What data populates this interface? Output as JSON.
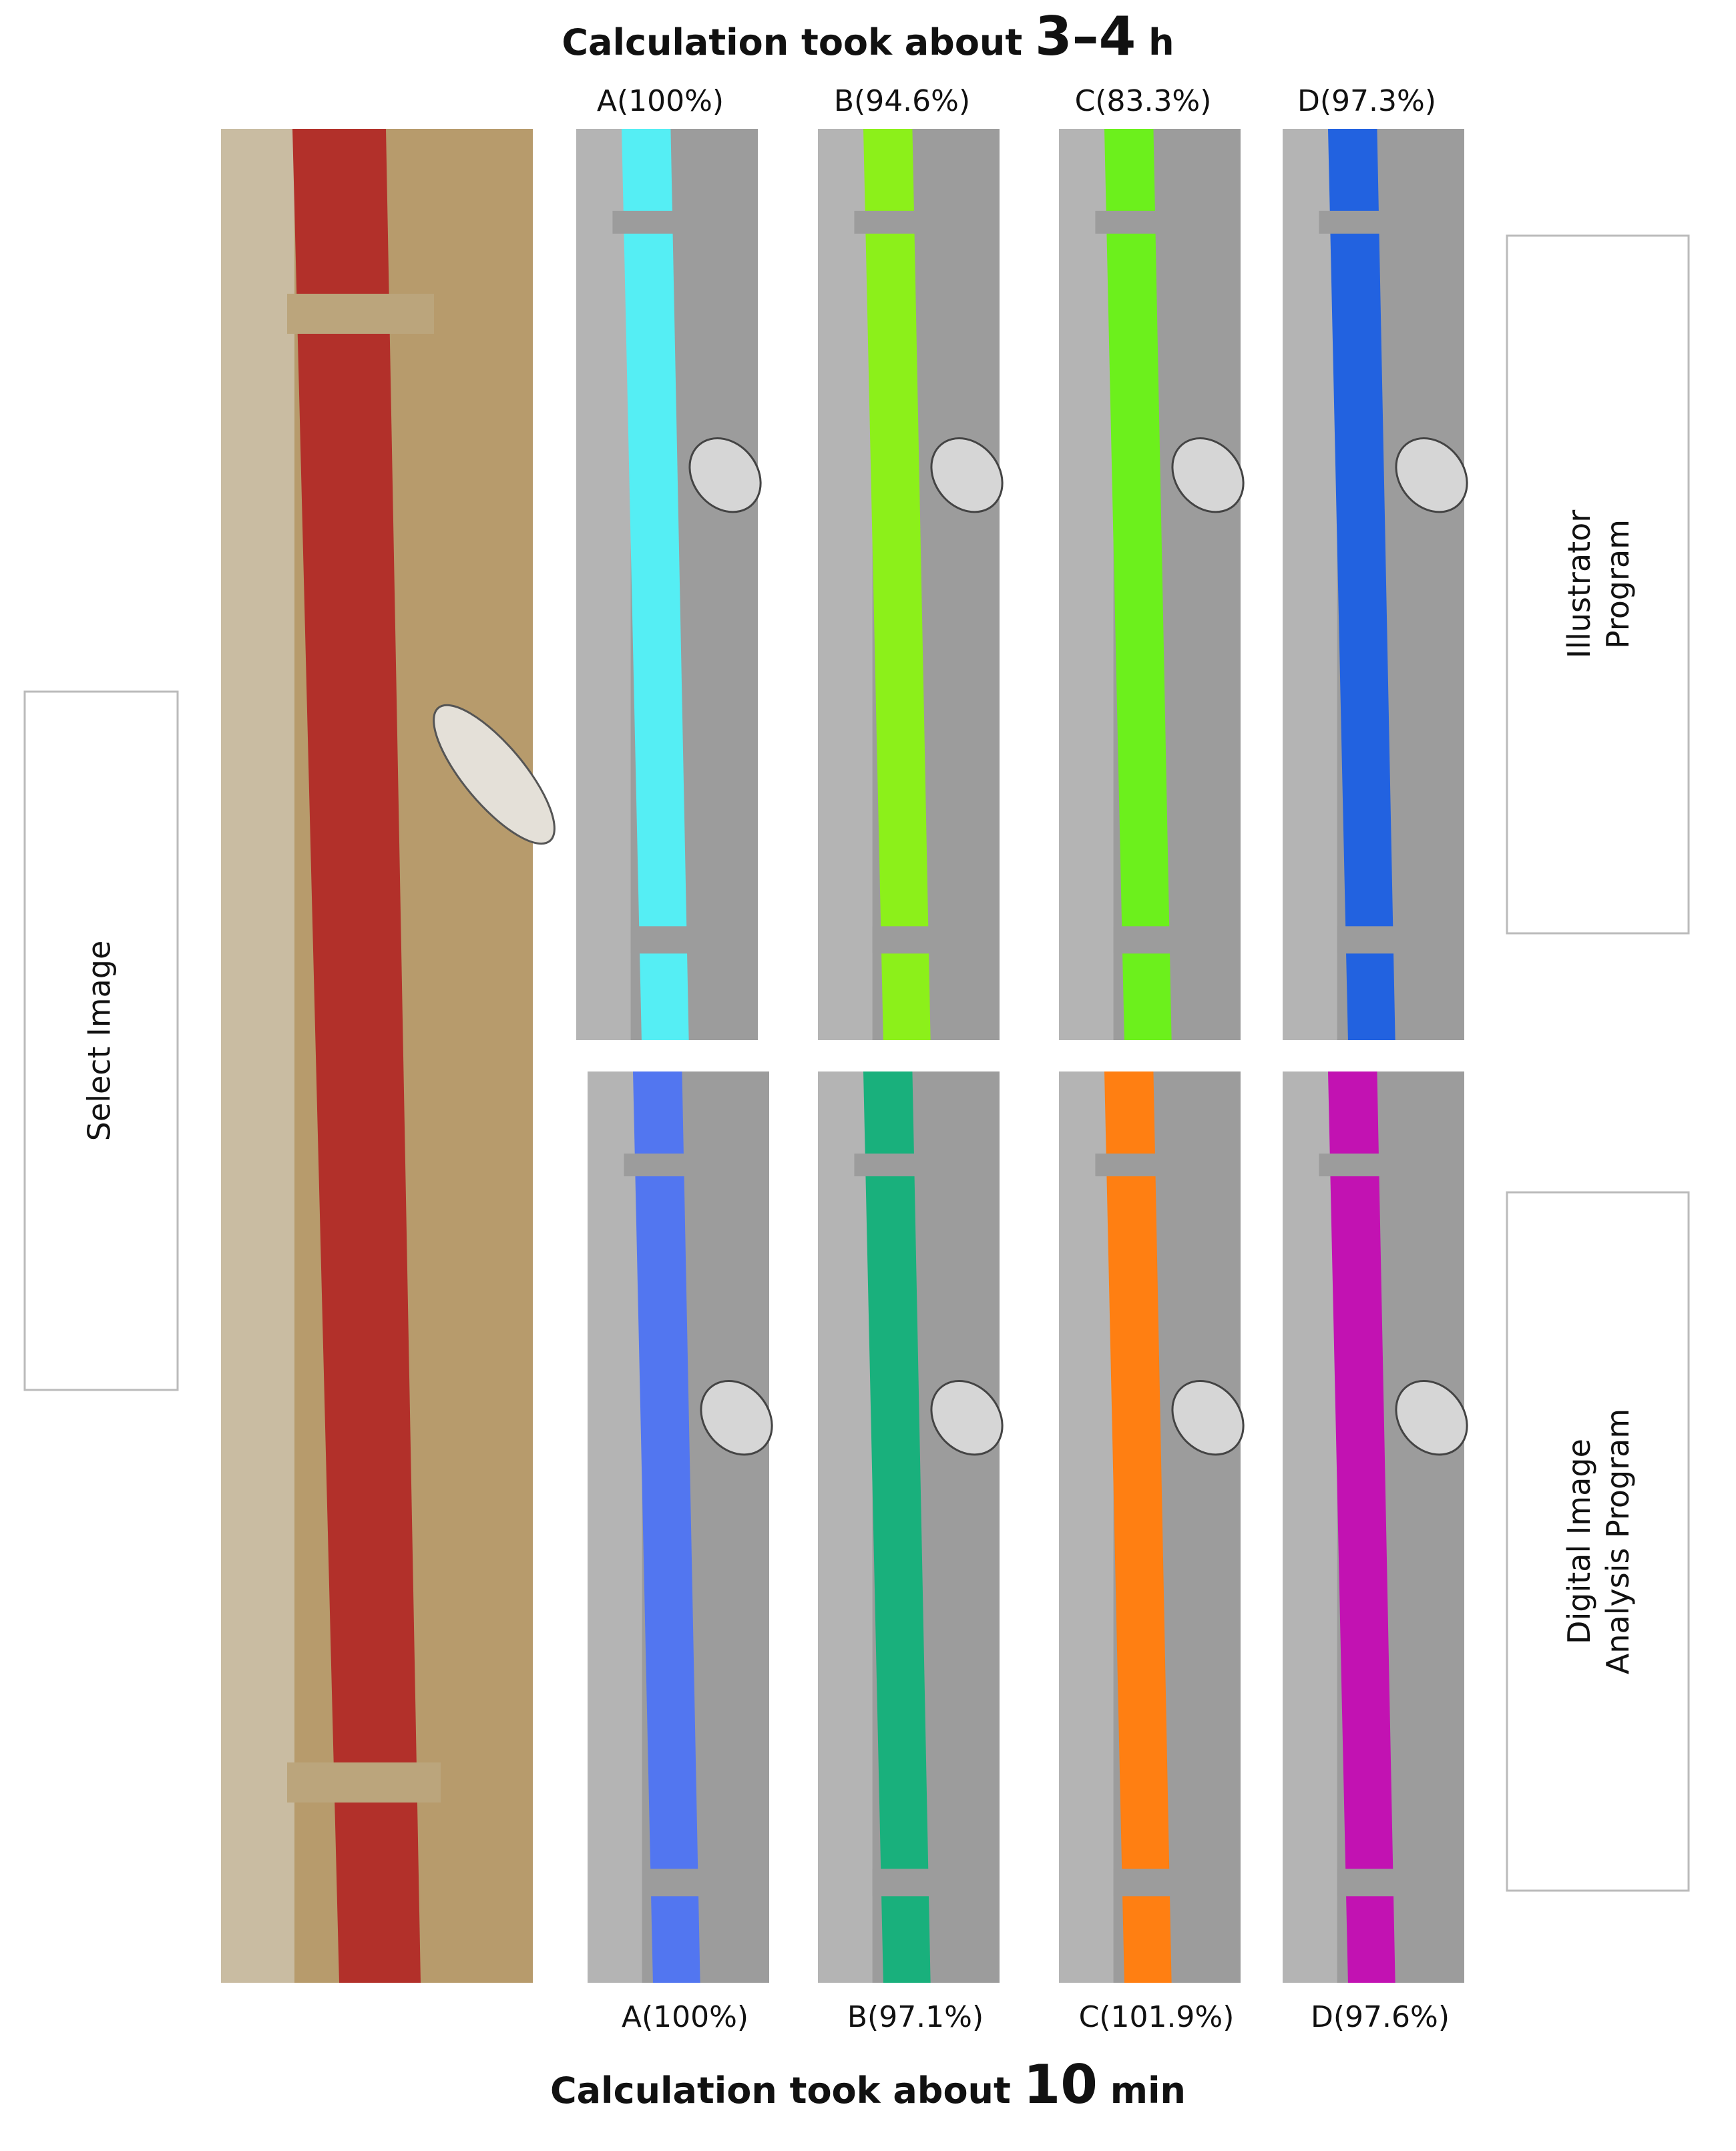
{
  "top_caption": {
    "text": "Calculation took about",
    "value": "3–4",
    "unit": "h"
  },
  "top_panels": [
    {
      "label": "A(100%)",
      "color": "#55eef4"
    },
    {
      "label": "B(94.6%)",
      "color": "#8cf01a"
    },
    {
      "label": "C(83.3%)",
      "color": "#6cf01c"
    },
    {
      "label": "D(97.3%)",
      "color": "#2262e0"
    }
  ],
  "bottom_panels": [
    {
      "label": "A(100%)",
      "color": "#5276f0"
    },
    {
      "label": "B(97.1%)",
      "color": "#19b07c"
    },
    {
      "label": "C(101.9%)",
      "color": "#ff7f12"
    },
    {
      "label": "D(97.6%)",
      "color": "#c212b2"
    }
  ],
  "bottom_caption": {
    "text": "Calculation took about",
    "value": "10",
    "unit": "min"
  },
  "select_box": {
    "label": "Select Image"
  },
  "illustrator_box": {
    "lines": [
      "Illustrator",
      "Program"
    ]
  },
  "digital_box": {
    "lines": [
      "Digital Image",
      "Analysis Program"
    ]
  }
}
